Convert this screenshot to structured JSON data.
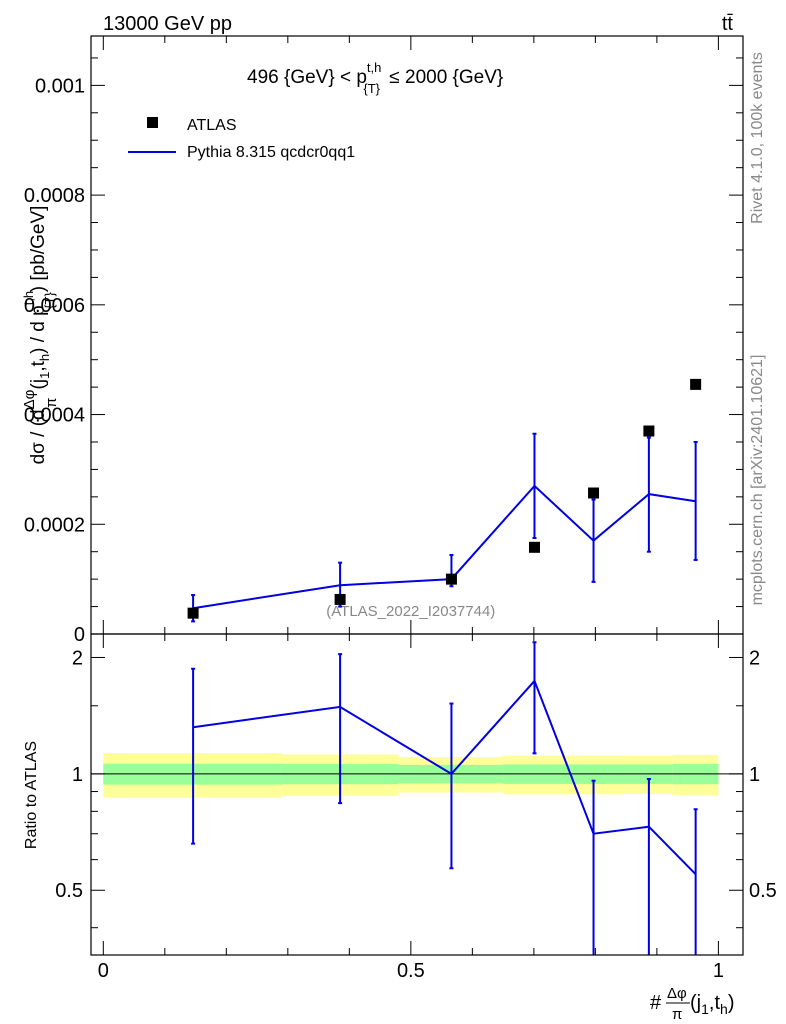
{
  "header": {
    "left_label": "13000 GeV pp",
    "right_label": "tt̄"
  },
  "side_labels": {
    "rivet": "Rivet 4.1.0,  100k events",
    "mcplots": "mcplots.cern.ch [arXiv:2401.10621]"
  },
  "chart_data": [
    {
      "type": "scatter",
      "panel": "main",
      "title": "496 {GeV} < p_{T}^{t,h} ≤ 2000 {GeV}",
      "ylabel": "dσ / (d Δφ/π (j₁,tₕ) / d p_{T}^{t,h}) [pb/GeV]",
      "xlim": [
        -0.02,
        1.04
      ],
      "ylim": [
        0,
        0.00109
      ],
      "yticks": [
        0,
        0.0002,
        0.0004,
        0.0006,
        0.0008,
        0.001
      ],
      "ytick_labels": [
        "0",
        "0.0002",
        "0.0004",
        "0.0006",
        "0.0008",
        "0.001"
      ],
      "watermark": "(ATLAS_2022_I2037744)",
      "legend": {
        "placement": "top-left",
        "entries": [
          {
            "label": "ATLAS",
            "color": "#000000"
          },
          {
            "label": "Pythia 8.315 qcdcr0qq1",
            "color": "#0000e0"
          }
        ]
      },
      "series": [
        {
          "name": "ATLAS",
          "x": [
            0.146,
            0.385,
            0.566,
            0.701,
            0.797,
            0.887,
            0.963
          ],
          "y": [
            3.8e-05,
            6.3e-05,
            0.0001,
            0.000158,
            0.000257,
            0.00037,
            0.000455
          ]
        },
        {
          "name": "Pythia 8.315 qcdcr0qq1",
          "x": [
            0.146,
            0.385,
            0.566,
            0.701,
            0.797,
            0.887,
            0.963
          ],
          "y": [
            4.7e-05,
            8.9e-05,
            0.0001,
            0.00027,
            0.00017,
            0.000255,
            0.000242
          ],
          "err_up": [
            7.1e-05,
            0.00013,
            0.000144,
            0.000365,
            0.000245,
            0.000358,
            0.00035
          ],
          "err_down": [
            2.3e-05,
            5e-05,
            8.7e-05,
            0.000175,
            9.5e-05,
            0.00015,
            0.000135
          ]
        }
      ]
    },
    {
      "type": "line",
      "panel": "ratio",
      "ylabel": "Ratio to ATLAS",
      "xlabel": "#Δφ/π (j₁,tₕ)",
      "xlim": [
        -0.02,
        1.04
      ],
      "ylim": [
        0.34,
        2.3
      ],
      "yticks": [
        0.5,
        1,
        2
      ],
      "ytick_labels": [
        "0.5",
        "1",
        "2"
      ],
      "xticks": [
        0,
        0.5,
        1
      ],
      "xtick_labels": [
        "0",
        "0.5",
        "1"
      ],
      "reference_line": 1,
      "bands": {
        "inner_color": "#99ff99",
        "outer_color": "#ffff99",
        "bins": [
          {
            "x0": 0.0,
            "x1": 0.29,
            "inner": [
              0.938,
              1.062
            ],
            "outer": [
              0.868,
              1.132
            ]
          },
          {
            "x0": 0.29,
            "x1": 0.48,
            "inner": [
              0.94,
              1.06
            ],
            "outer": [
              0.878,
              1.122
            ]
          },
          {
            "x0": 0.48,
            "x1": 0.65,
            "inner": [
              0.945,
              1.055
            ],
            "outer": [
              0.895,
              1.105
            ]
          },
          {
            "x0": 0.65,
            "x1": 0.745,
            "inner": [
              0.942,
              1.058
            ],
            "outer": [
              0.885,
              1.115
            ]
          },
          {
            "x0": 0.745,
            "x1": 0.845,
            "inner": [
              0.942,
              1.058
            ],
            "outer": [
              0.885,
              1.115
            ]
          },
          {
            "x0": 0.845,
            "x1": 0.925,
            "inner": [
              0.942,
              1.058
            ],
            "outer": [
              0.887,
              1.113
            ]
          },
          {
            "x0": 0.925,
            "x1": 1.0,
            "inner": [
              0.94,
              1.06
            ],
            "outer": [
              0.88,
              1.12
            ]
          }
        ]
      },
      "series": [
        {
          "name": "Pythia 8.315 qcdcr0qq1",
          "x": [
            0.146,
            0.385,
            0.566,
            0.701,
            0.797,
            0.887,
            0.963
          ],
          "y": [
            1.32,
            1.49,
            1.0,
            1.74,
            0.7,
            0.73,
            0.55
          ],
          "err_up": [
            1.87,
            2.04,
            1.52,
            2.19,
            0.96,
            0.97,
            0.81
          ],
          "err_down": [
            0.66,
            0.84,
            0.57,
            1.13,
            0.34,
            0.34,
            0.34
          ]
        }
      ]
    }
  ]
}
